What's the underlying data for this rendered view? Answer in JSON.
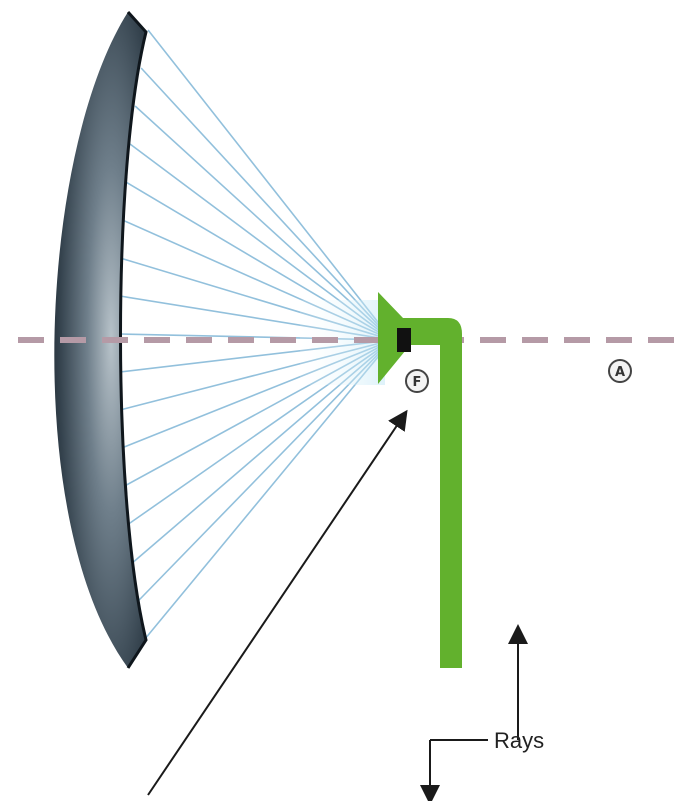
{
  "diagram": {
    "rays_label": "Rays",
    "focus_label": "F",
    "axis_point_label": "A",
    "colors": {
      "ray": "#5b8fbd",
      "reflected_ray": "#7fb6d6",
      "dish_dark": "#1f2a33",
      "dish_light": "#9aa7b0",
      "feed": "#62b12d",
      "axis": "#b59aa6",
      "arrow": "#1a1a1a"
    }
  }
}
